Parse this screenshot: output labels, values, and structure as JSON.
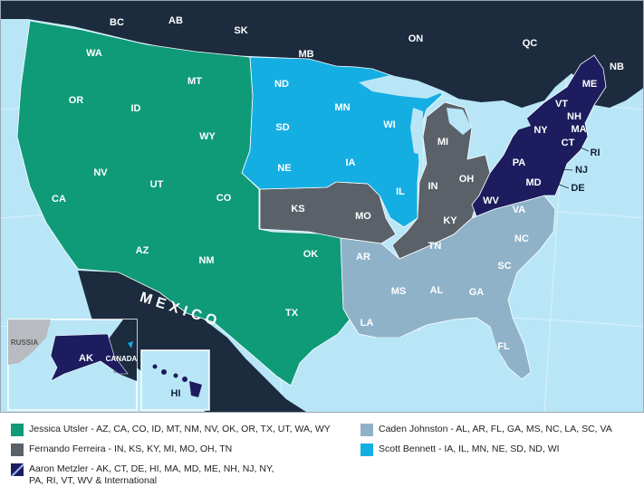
{
  "colors": {
    "ocean": "#b9e6f7",
    "land_dark": "#1c2b3e",
    "green": "#0f9a78",
    "gray": "#5b6169",
    "light_blue": "#8fb2c9",
    "bright_blue": "#14aee3",
    "navy": "#1c1c5e",
    "foreign": "#b8bcc0"
  },
  "regions": {
    "canada": [
      "BC",
      "AB",
      "SK",
      "MB",
      "ON",
      "QC",
      "NB"
    ],
    "green": [
      "WA",
      "OR",
      "CA",
      "NV",
      "ID",
      "MT",
      "WY",
      "UT",
      "CO",
      "AZ",
      "NM",
      "OK",
      "TX"
    ],
    "gray": [
      "KS",
      "MO",
      "MI",
      "IN",
      "OH",
      "KY",
      "TN"
    ],
    "bright_blue": [
      "ND",
      "SD",
      "NE",
      "MN",
      "IA",
      "WI",
      "IL"
    ],
    "light_blue": [
      "AR",
      "LA",
      "MS",
      "AL",
      "GA",
      "SC",
      "NC",
      "VA",
      "FL"
    ],
    "navy": [
      "ME",
      "VT",
      "NH",
      "MA",
      "NY",
      "CT",
      "RI",
      "PA",
      "NJ",
      "DE",
      "MD",
      "WV"
    ]
  },
  "inset": {
    "russia": "RUSSIA",
    "alaska": "AK",
    "canada": "CANADA",
    "hawaii": "HI"
  },
  "mexico": "MEXICO",
  "legend": [
    {
      "name": "Jessica Utsler",
      "states": "AZ, CA, CO, ID, MT, NM, NV, OK, OR, TX, UT, WA, WY",
      "text": "Jessica Utsler - AZ, CA, CO, ID, MT, NM, NV, OK, OR, TX, UT, WA, WY",
      "color": "#0f9a78"
    },
    {
      "name": "Fernando Ferreira",
      "states": "IN, KS, KY, MI, MO, OH, TN",
      "text": "Fernando Ferreira - IN, KS, KY, MI, MO, OH, TN",
      "color": "#5b6169"
    },
    {
      "name": "Aaron Metzler",
      "states": "AK, CT, DE, HI, MA, MD, ME, NH, NJ, NY, PA, RI, VT, WV & International",
      "text": "Aaron Metzler - AK, CT, DE, HI, MA, MD, ME, NH, NJ, NY,\nPA, RI, VT, WV & International",
      "color": "#1c1c5e"
    },
    {
      "name": "Caden Johnston",
      "states": "AL, AR, FL, GA, MS, NC, LA, SC, VA",
      "text": "Caden Johnston - AL, AR, FL, GA, MS, NC, LA, SC, VA",
      "color": "#8fb2c9"
    },
    {
      "name": "Scott Bennett",
      "states": "IA, IL, MN, NE, SD, ND, WI",
      "text": "Scott Bennett - IA, IL, MN, NE, SD, ND, WI",
      "color": "#14aee3"
    }
  ]
}
